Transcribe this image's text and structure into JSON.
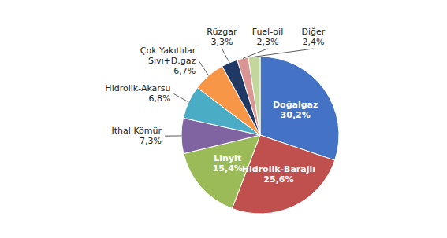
{
  "chart_data": {
    "type": "pie",
    "categories": [
      "Doğalgaz",
      "Hidrolik-Barajlı",
      "Linyit",
      "İthal Kömür",
      "Hidrolik-Akarsu",
      "Çok Yakıtlılar\nSıvı+D.gaz",
      "Rüzgar",
      "Fuel-oil",
      "Diğer"
    ],
    "values": [
      30.2,
      25.6,
      15.4,
      7.3,
      6.8,
      6.7,
      3.3,
      2.3,
      2.4
    ],
    "value_labels": [
      "30,2%",
      "25,6%",
      "15,4%",
      "7,3%",
      "6,8%",
      "6,7%",
      "3,3%",
      "2,3%",
      "2,4%"
    ],
    "colors": [
      "#4472C4",
      "#C0504D",
      "#9BBB59",
      "#8064A2",
      "#4BACC6",
      "#F79646",
      "#1F3864",
      "#DA9694",
      "#C3D69B"
    ]
  }
}
